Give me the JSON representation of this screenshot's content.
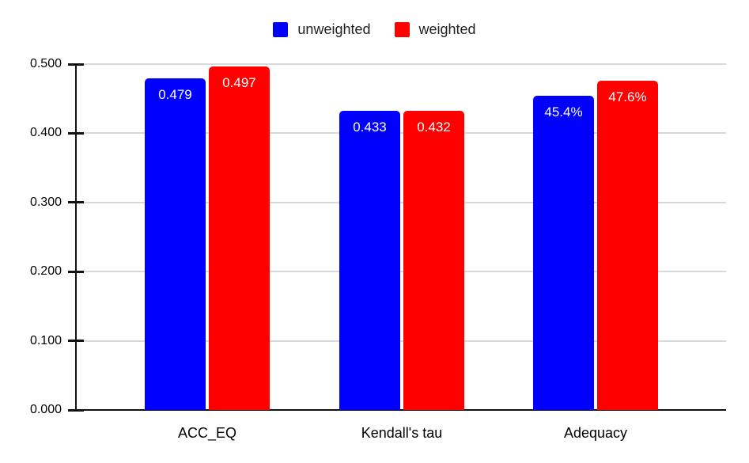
{
  "chart_data": {
    "type": "bar",
    "title": "",
    "categories": [
      "ACC_EQ",
      "Kendall's tau",
      "Adequacy"
    ],
    "series": [
      {
        "name": "unweighted",
        "color": "#0000ff",
        "values": [
          0.479,
          0.433,
          0.454
        ],
        "value_labels": [
          "0.479",
          "0.433",
          "45.4%"
        ]
      },
      {
        "name": "weighted",
        "color": "#ff0000",
        "values": [
          0.497,
          0.432,
          0.476
        ],
        "value_labels": [
          "0.497",
          "0.432",
          "47.6%"
        ]
      }
    ],
    "xlabel": "",
    "ylabel": "",
    "ylim": [
      0,
      0.5
    ],
    "y_axis": {
      "min": 0,
      "max": 0.5,
      "tick_step": 0.1,
      "tick_labels": [
        "0.000",
        "0.100",
        "0.200",
        "0.300",
        "0.400",
        "0.500"
      ]
    },
    "legend_position": "top-center",
    "grid": true,
    "colors": {
      "background": "#ffffff",
      "gridline": "#d9d9d9",
      "axis": "#111111",
      "axis_text": "#000000",
      "legend_text": "#212121",
      "bar_label_text": "#ffffff"
    }
  }
}
